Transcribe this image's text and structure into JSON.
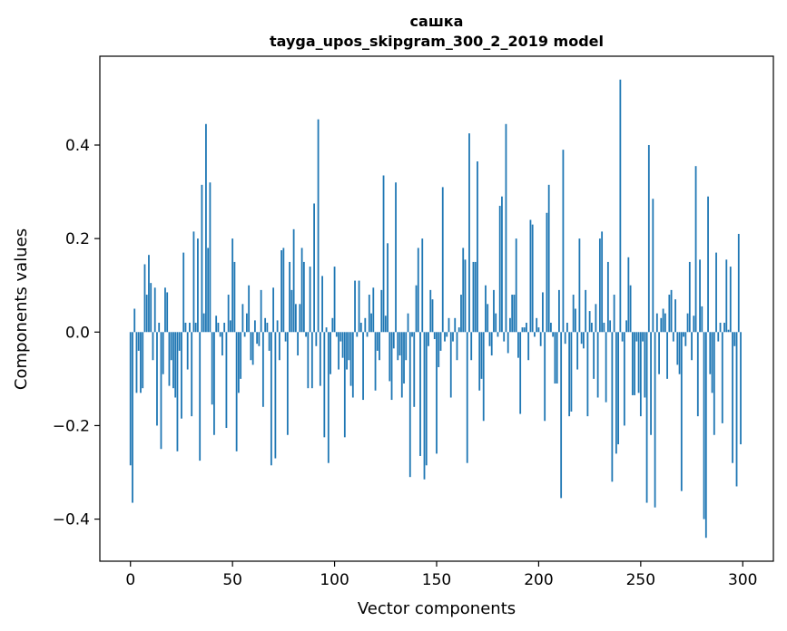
{
  "chart_data": {
    "type": "bar",
    "title": "сашка",
    "subtitle": "tayga_upos_skipgram_300_2_2019 model",
    "xlabel": "Vector components",
    "ylabel": "Components values",
    "xlim": [
      -15,
      315
    ],
    "ylim": [
      -0.49,
      0.59
    ],
    "xticks": [
      0,
      50,
      100,
      150,
      200,
      250,
      300
    ],
    "xtick_labels": [
      "0",
      "50",
      "100",
      "150",
      "200",
      "250",
      "300"
    ],
    "yticks": [
      -0.4,
      -0.2,
      0.0,
      0.2,
      0.4
    ],
    "ytick_labels": [
      "−0.4",
      "−0.2",
      "0.0",
      "0.2",
      "0.4"
    ],
    "bar_color": "#1f77b4",
    "grid": false,
    "x": [
      0,
      1,
      2,
      3,
      4,
      5,
      6,
      7,
      8,
      9,
      10,
      11,
      12,
      13,
      14,
      15,
      16,
      17,
      18,
      19,
      20,
      21,
      22,
      23,
      24,
      25,
      26,
      27,
      28,
      29,
      30,
      31,
      32,
      33,
      34,
      35,
      36,
      37,
      38,
      39,
      40,
      41,
      42,
      43,
      44,
      45,
      46,
      47,
      48,
      49,
      50,
      51,
      52,
      53,
      54,
      55,
      56,
      57,
      58,
      59,
      60,
      61,
      62,
      63,
      64,
      65,
      66,
      67,
      68,
      69,
      70,
      71,
      72,
      73,
      74,
      75,
      76,
      77,
      78,
      79,
      80,
      81,
      82,
      83,
      84,
      85,
      86,
      87,
      88,
      89,
      90,
      91,
      92,
      93,
      94,
      95,
      96,
      97,
      98,
      99,
      100,
      101,
      102,
      103,
      104,
      105,
      106,
      107,
      108,
      109,
      110,
      111,
      112,
      113,
      114,
      115,
      116,
      117,
      118,
      119,
      120,
      121,
      122,
      123,
      124,
      125,
      126,
      127,
      128,
      129,
      130,
      131,
      132,
      133,
      134,
      135,
      136,
      137,
      138,
      139,
      140,
      141,
      142,
      143,
      144,
      145,
      146,
      147,
      148,
      149,
      150,
      151,
      152,
      153,
      154,
      155,
      156,
      157,
      158,
      159,
      160,
      161,
      162,
      163,
      164,
      165,
      166,
      167,
      168,
      169,
      170,
      171,
      172,
      173,
      174,
      175,
      176,
      177,
      178,
      179,
      180,
      181,
      182,
      183,
      184,
      185,
      186,
      187,
      188,
      189,
      190,
      191,
      192,
      193,
      194,
      195,
      196,
      197,
      198,
      199,
      200,
      201,
      202,
      203,
      204,
      205,
      206,
      207,
      208,
      209,
      210,
      211,
      212,
      213,
      214,
      215,
      216,
      217,
      218,
      219,
      220,
      221,
      222,
      223,
      224,
      225,
      226,
      227,
      228,
      229,
      230,
      231,
      232,
      233,
      234,
      235,
      236,
      237,
      238,
      239,
      240,
      241,
      242,
      243,
      244,
      245,
      246,
      247,
      248,
      249,
      250,
      251,
      252,
      253,
      254,
      255,
      256,
      257,
      258,
      259,
      260,
      261,
      262,
      263,
      264,
      265,
      266,
      267,
      268,
      269,
      270,
      271,
      272,
      273,
      274,
      275,
      276,
      277,
      278,
      279,
      280,
      281,
      282,
      283,
      284,
      285,
      286,
      287,
      288,
      289,
      290,
      291,
      292,
      293,
      294,
      295,
      296,
      297,
      298,
      299
    ],
    "values": [
      -0.285,
      -0.365,
      0.05,
      -0.13,
      -0.04,
      -0.13,
      -0.12,
      0.145,
      0.08,
      0.165,
      0.105,
      -0.06,
      0.095,
      -0.2,
      0.02,
      -0.25,
      -0.09,
      0.095,
      0.085,
      -0.115,
      -0.06,
      -0.12,
      -0.14,
      -0.255,
      -0.04,
      -0.185,
      0.17,
      0.02,
      -0.08,
      0.02,
      -0.18,
      0.215,
      0.02,
      0.2,
      -0.275,
      0.315,
      0.04,
      0.445,
      0.18,
      0.32,
      -0.155,
      -0.22,
      0.035,
      0.02,
      -0.01,
      -0.05,
      0.02,
      -0.205,
      0.08,
      0.025,
      0.2,
      0.15,
      -0.255,
      -0.13,
      -0.1,
      0.06,
      -0.01,
      0.04,
      0.1,
      -0.06,
      -0.07,
      0.025,
      -0.025,
      -0.03,
      0.09,
      -0.16,
      0.03,
      0.02,
      -0.04,
      -0.285,
      0.095,
      -0.27,
      0.025,
      -0.06,
      0.175,
      0.18,
      -0.02,
      -0.22,
      0.15,
      0.09,
      0.22,
      0.06,
      -0.05,
      0.06,
      0.18,
      0.15,
      -0.01,
      -0.12,
      0.14,
      -0.12,
      0.275,
      -0.03,
      0.455,
      -0.115,
      0.12,
      -0.225,
      0.01,
      -0.28,
      -0.09,
      0.03,
      0.14,
      -0.01,
      -0.08,
      -0.02,
      -0.055,
      -0.225,
      -0.08,
      -0.06,
      -0.115,
      -0.14,
      0.11,
      -0.01,
      0.11,
      0.02,
      -0.145,
      0.03,
      -0.01,
      0.08,
      0.04,
      0.095,
      -0.125,
      -0.04,
      -0.06,
      0.09,
      0.335,
      0.035,
      0.19,
      -0.105,
      -0.145,
      -0.035,
      0.32,
      -0.06,
      -0.05,
      -0.14,
      -0.11,
      -0.06,
      0.04,
      -0.31,
      -0.01,
      -0.16,
      0.1,
      0.18,
      -0.265,
      0.2,
      -0.315,
      -0.285,
      -0.03,
      0.09,
      0.07,
      -0.015,
      -0.26,
      -0.075,
      -0.04,
      0.31,
      -0.02,
      -0.01,
      0.03,
      -0.14,
      -0.02,
      0.03,
      -0.06,
      0.01,
      0.08,
      0.18,
      0.155,
      -0.28,
      0.425,
      -0.06,
      0.15,
      0.15,
      0.365,
      -0.125,
      -0.1,
      -0.19,
      0.1,
      0.06,
      -0.03,
      -0.05,
      0.09,
      0.04,
      -0.01,
      0.27,
      0.29,
      -0.02,
      0.445,
      -0.045,
      0.03,
      0.08,
      0.08,
      0.2,
      -0.055,
      -0.175,
      0.01,
      0.01,
      0.02,
      -0.06,
      0.24,
      0.23,
      -0.01,
      0.03,
      0.01,
      -0.03,
      0.085,
      -0.19,
      0.255,
      0.315,
      0.02,
      -0.01,
      -0.11,
      -0.11,
      0.09,
      -0.355,
      0.39,
      -0.025,
      0.02,
      -0.18,
      -0.17,
      0.08,
      0.05,
      -0.08,
      0.2,
      -0.025,
      -0.035,
      0.09,
      -0.18,
      0.045,
      0.02,
      -0.1,
      0.06,
      -0.14,
      0.2,
      0.215,
      0.02,
      -0.15,
      0.15,
      0.025,
      -0.32,
      0.08,
      -0.26,
      -0.24,
      0.54,
      -0.02,
      -0.2,
      0.025,
      0.16,
      0.1,
      -0.135,
      -0.135,
      -0.02,
      -0.13,
      -0.18,
      -0.02,
      -0.14,
      -0.365,
      0.4,
      -0.22,
      0.285,
      -0.375,
      0.04,
      -0.09,
      0.03,
      0.05,
      0.04,
      -0.1,
      0.08,
      0.09,
      -0.02,
      0.07,
      -0.07,
      -0.09,
      -0.34,
      -0.01,
      -0.03,
      0.04,
      0.15,
      -0.06,
      0.035,
      0.355,
      -0.18,
      0.155,
      0.055,
      -0.4,
      -0.44,
      0.29,
      -0.09,
      -0.13,
      -0.22,
      0.17,
      -0.02,
      0.02,
      -0.195,
      0.02,
      0.155,
      0.005,
      0.14,
      -0.28,
      -0.03,
      -0.33,
      0.21,
      -0.24
    ]
  }
}
